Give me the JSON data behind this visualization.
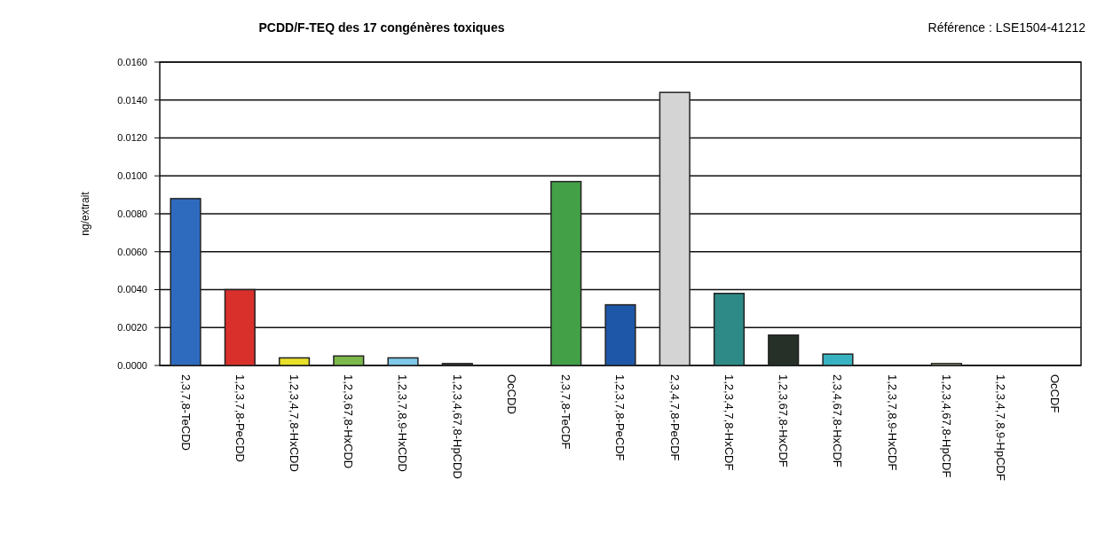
{
  "chart_data": {
    "type": "bar",
    "title": "PCDD/F-TEQ des 17 congénères toxiques",
    "subtitle": "Référence : LSE1504-41212",
    "ylabel": "ng/extrait",
    "categories": [
      "2,3,7,8-TeCDD",
      "1,2,3,7,8-PeCDD",
      "1,2,3,4,7,8-HxCDD",
      "1,2,3,67,8-HxCDD",
      "1,2,3,7,8,9-HxCDD",
      "1,2,3,4,67,8-HpCDD",
      "OcCDD",
      "2,3,7,8-TeCDF",
      "1,2,3,7,8-PeCDF",
      "2,3,4,7,8-PeCDF",
      "1,2,3,4,7,8-HxCDF",
      "1,2,3,67,8-HxCDF",
      "2,3,4,67,8-HxCDF",
      "1,2,3,7,8,9-HxCDF",
      "1,2,3,4,67,8-HpCDF",
      "1,2,3,4,7,8,9-HpCDF",
      "OcCDF"
    ],
    "values": [
      0.0088,
      0.004,
      0.0004,
      0.0005,
      0.0004,
      0.0001,
      0,
      0.0097,
      0.0032,
      0.0144,
      0.0038,
      0.0016,
      0.0006,
      0,
      0.0001,
      0,
      0
    ],
    "colors": [
      "#2e6bbf",
      "#d9302c",
      "#e8e02a",
      "#7db84a",
      "#7ec8e8",
      "#404040",
      "#909090",
      "#43a047",
      "#1f57a8",
      "#d4d4d4",
      "#2e8a86",
      "#263028",
      "#38b2c0",
      "#a0a0a0",
      "#c8c8a0",
      "#909090",
      "#909090"
    ],
    "ylim": [
      0,
      0.016
    ],
    "yticks": [
      {
        "value": 0,
        "label": "0.0000"
      },
      {
        "value": 0.002,
        "label": "0.0020"
      },
      {
        "value": 0.004,
        "label": "0.0040"
      },
      {
        "value": 0.006,
        "label": "0.0060"
      },
      {
        "value": 0.008,
        "label": "0.0080"
      },
      {
        "value": 0.01,
        "label": "0.0100"
      },
      {
        "value": 0.012,
        "label": "0.0120"
      },
      {
        "value": 0.014,
        "label": "0.0140"
      },
      {
        "value": 0.016,
        "label": "0.0160"
      }
    ],
    "grid": "y"
  }
}
